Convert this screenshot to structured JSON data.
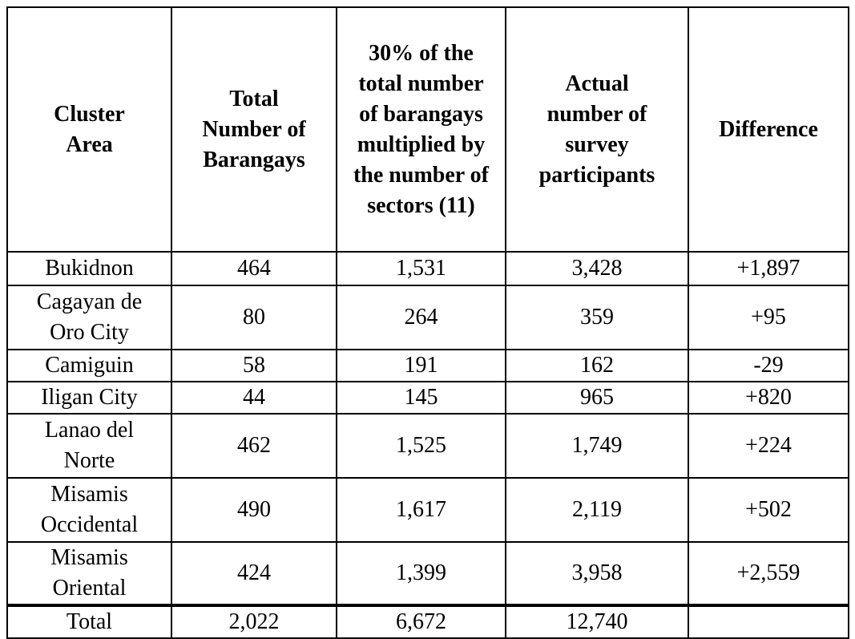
{
  "table": {
    "headers": [
      "Cluster Area",
      "Total Number of Barangays",
      "30% of the total number of barangays multiplied by the number of sectors (11)",
      "Actual number of survey participants",
      "Difference"
    ],
    "rows": [
      [
        "Bukidnon",
        "464",
        "1,531",
        "3,428",
        "+1,897"
      ],
      [
        "Cagayan de Oro City",
        "80",
        "264",
        "359",
        "+95"
      ],
      [
        "Camiguin",
        "58",
        "191",
        "162",
        "-29"
      ],
      [
        "Iligan City",
        "44",
        "145",
        "965",
        "+820"
      ],
      [
        "Lanao del Norte",
        "462",
        "1,525",
        "1,749",
        "+224"
      ],
      [
        "Misamis Occidental",
        "490",
        "1,617",
        "2,119",
        "+502"
      ],
      [
        "Misamis Oriental",
        "424",
        "1,399",
        "3,958",
        "+2,559"
      ]
    ],
    "total": [
      "Total",
      "2,022",
      "6,672",
      "12,740"
    ]
  }
}
